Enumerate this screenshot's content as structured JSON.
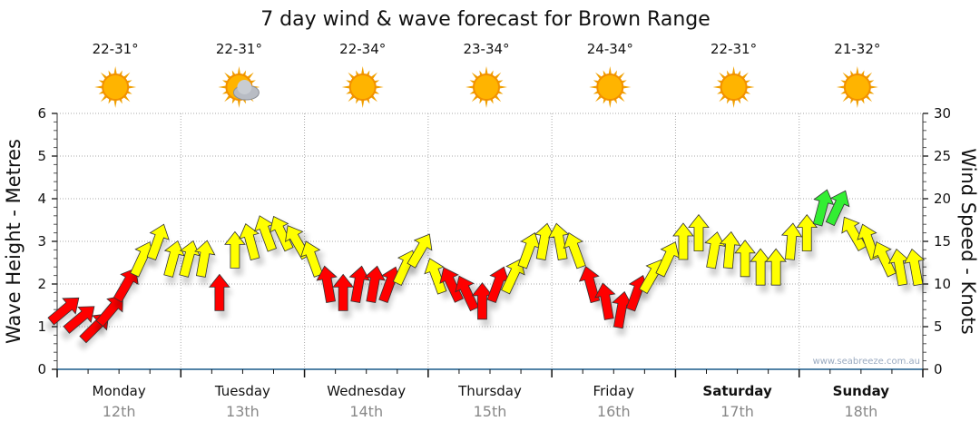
{
  "chart_data": {
    "type": "scatter",
    "title": "7 day wind & wave forecast for Brown Range",
    "ylabel": "Wave Height - Metres",
    "y2label": "Wind Speed - Knots",
    "ylim": [
      0,
      6
    ],
    "y2lim": [
      0,
      30
    ],
    "yticks": [
      "0",
      "1",
      "2",
      "3",
      "4",
      "5",
      "6"
    ],
    "y2ticks": [
      "0",
      "5",
      "10",
      "15",
      "20",
      "25",
      "30"
    ],
    "grid": true,
    "days": [
      {
        "day": "Monday",
        "date": "12th",
        "temp": "22-31°",
        "icon": "sun-icon",
        "bold": false
      },
      {
        "day": "Tuesday",
        "date": "13th",
        "temp": "22-31°",
        "icon": "partly-cloudy-icon",
        "bold": false
      },
      {
        "day": "Wednesday",
        "date": "14th",
        "temp": "22-34°",
        "icon": "sun-icon",
        "bold": false
      },
      {
        "day": "Thursday",
        "date": "15th",
        "temp": "23-34°",
        "icon": "sun-icon",
        "bold": false
      },
      {
        "day": "Friday",
        "date": "16th",
        "temp": "24-34°",
        "icon": "sun-icon",
        "bold": false
      },
      {
        "day": "Saturday",
        "date": "17th",
        "temp": "22-31°",
        "icon": "sun-icon",
        "bold": true
      },
      {
        "day": "Sunday",
        "date": "18th",
        "temp": "21-32°",
        "icon": "sun-icon",
        "bold": true
      }
    ],
    "wind_knots": [
      7,
      6,
      5,
      7,
      10,
      13,
      15,
      13,
      13,
      13,
      9,
      14,
      15,
      16,
      16,
      15,
      13,
      10,
      9,
      10,
      10,
      10,
      12,
      14,
      11,
      10,
      9,
      8,
      10,
      11,
      14,
      15,
      15,
      14,
      10,
      8,
      7,
      9,
      11,
      13,
      15,
      16,
      14,
      14,
      13,
      12,
      12,
      15,
      16,
      19,
      19,
      16,
      15,
      13,
      12,
      12
    ],
    "wind_rotation_deg": [
      50,
      50,
      45,
      40,
      30,
      25,
      20,
      15,
      15,
      10,
      0,
      0,
      -15,
      -20,
      -25,
      -30,
      -20,
      -10,
      0,
      10,
      10,
      20,
      25,
      30,
      -20,
      -25,
      -25,
      0,
      20,
      25,
      20,
      10,
      -10,
      -20,
      -15,
      -10,
      10,
      20,
      30,
      25,
      0,
      0,
      10,
      5,
      0,
      0,
      0,
      5,
      0,
      15,
      25,
      -30,
      -20,
      -25,
      -10,
      -10
    ],
    "colors": {
      "light": "#ff0000",
      "moderate": "#ffff00",
      "strong": "#33ee33"
    },
    "watermark": "www.seabreeze.com.au"
  }
}
